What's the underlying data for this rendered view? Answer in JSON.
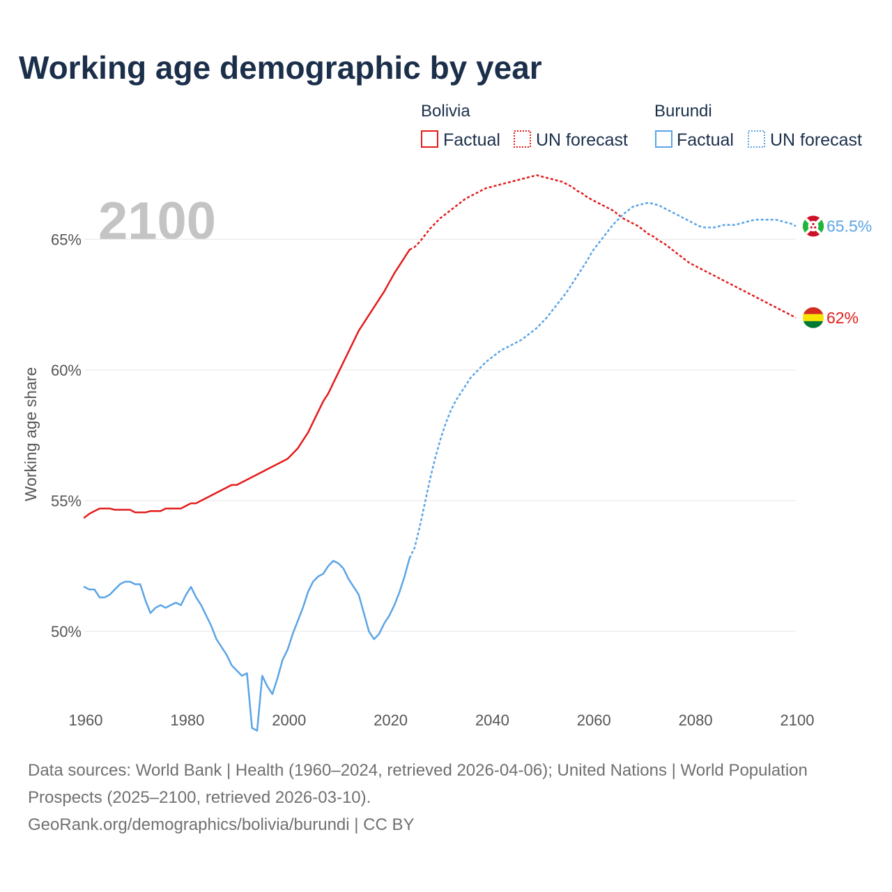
{
  "title": "Working age demographic by year",
  "legend": {
    "groups": [
      {
        "name": "Bolivia",
        "color": "#e31b1b",
        "factual_label": "Factual",
        "forecast_label": "UN forecast"
      },
      {
        "name": "Burundi",
        "color": "#5aa4e6",
        "factual_label": "Factual",
        "forecast_label": "UN forecast"
      }
    ]
  },
  "year_display": "2100",
  "footer": {
    "sources": "Data sources: World Bank | Health (1960–2024, retrieved 2026-04-06); United Nations | World Population Prospects (2025–2100, retrieved 2026-03-10).",
    "credit": "GeoRank.org/demographics/bolivia/burundi | CC BY"
  },
  "chart_data": {
    "type": "line",
    "title": "Working age demographic by year",
    "xlabel": "",
    "ylabel": "Working age share",
    "xlim": [
      1960,
      2100
    ],
    "ylim": [
      46.0,
      68.5
    ],
    "x_ticks": [
      1960,
      1980,
      2000,
      2020,
      2040,
      2060,
      2080,
      2100
    ],
    "x_tick_labels": [
      "1960",
      "1980",
      "2000",
      "2020",
      "2040",
      "2060",
      "2080",
      "2100"
    ],
    "y_ticks": [
      50,
      55,
      60,
      65
    ],
    "y_tick_labels": [
      "50%",
      "55%",
      "60%",
      "65%"
    ],
    "grid": true,
    "series": [
      {
        "name": "Bolivia",
        "color": "#e31b1b",
        "end_label": "62%",
        "flag_icon": "bolivia-flag-icon",
        "flag_colors": [
          "#d52b1e",
          "#f9e300",
          "#007934"
        ],
        "factual": [
          [
            1960,
            54.35
          ],
          [
            1961,
            54.5
          ],
          [
            1962,
            54.6
          ],
          [
            1963,
            54.7
          ],
          [
            1964,
            54.7
          ],
          [
            1965,
            54.7
          ],
          [
            1966,
            54.65
          ],
          [
            1967,
            54.65
          ],
          [
            1968,
            54.65
          ],
          [
            1969,
            54.65
          ],
          [
            1970,
            54.55
          ],
          [
            1971,
            54.55
          ],
          [
            1972,
            54.55
          ],
          [
            1973,
            54.6
          ],
          [
            1974,
            54.6
          ],
          [
            1975,
            54.6
          ],
          [
            1976,
            54.7
          ],
          [
            1977,
            54.7
          ],
          [
            1978,
            54.7
          ],
          [
            1979,
            54.7
          ],
          [
            1980,
            54.8
          ],
          [
            1981,
            54.9
          ],
          [
            1982,
            54.9
          ],
          [
            1983,
            55.0
          ],
          [
            1984,
            55.1
          ],
          [
            1985,
            55.2
          ],
          [
            1986,
            55.3
          ],
          [
            1987,
            55.4
          ],
          [
            1988,
            55.5
          ],
          [
            1989,
            55.6
          ],
          [
            1990,
            55.6
          ],
          [
            1991,
            55.7
          ],
          [
            1992,
            55.8
          ],
          [
            1993,
            55.9
          ],
          [
            1994,
            56.0
          ],
          [
            1995,
            56.1
          ],
          [
            1996,
            56.2
          ],
          [
            1997,
            56.3
          ],
          [
            1998,
            56.4
          ],
          [
            1999,
            56.5
          ],
          [
            2000,
            56.6
          ],
          [
            2001,
            56.8
          ],
          [
            2002,
            57.0
          ],
          [
            2003,
            57.3
          ],
          [
            2004,
            57.6
          ],
          [
            2005,
            58.0
          ],
          [
            2006,
            58.4
          ],
          [
            2007,
            58.8
          ],
          [
            2008,
            59.1
          ],
          [
            2009,
            59.5
          ],
          [
            2010,
            59.9
          ],
          [
            2011,
            60.3
          ],
          [
            2012,
            60.7
          ],
          [
            2013,
            61.1
          ],
          [
            2014,
            61.5
          ],
          [
            2015,
            61.8
          ],
          [
            2016,
            62.1
          ],
          [
            2017,
            62.4
          ],
          [
            2018,
            62.7
          ],
          [
            2019,
            63.0
          ],
          [
            2020,
            63.35
          ],
          [
            2021,
            63.7
          ],
          [
            2022,
            64.0
          ],
          [
            2023,
            64.3
          ],
          [
            2024,
            64.6
          ]
        ],
        "forecast": [
          [
            2024,
            64.6
          ],
          [
            2025,
            64.7
          ],
          [
            2026,
            64.9
          ],
          [
            2027,
            65.15
          ],
          [
            2028,
            65.4
          ],
          [
            2029,
            65.6
          ],
          [
            2030,
            65.8
          ],
          [
            2031,
            65.95
          ],
          [
            2032,
            66.1
          ],
          [
            2033,
            66.25
          ],
          [
            2034,
            66.4
          ],
          [
            2035,
            66.55
          ],
          [
            2036,
            66.65
          ],
          [
            2037,
            66.75
          ],
          [
            2038,
            66.85
          ],
          [
            2039,
            66.95
          ],
          [
            2040,
            67.0
          ],
          [
            2041,
            67.05
          ],
          [
            2042,
            67.1
          ],
          [
            2043,
            67.15
          ],
          [
            2044,
            67.2
          ],
          [
            2045,
            67.25
          ],
          [
            2046,
            67.3
          ],
          [
            2047,
            67.35
          ],
          [
            2048,
            67.4
          ],
          [
            2049,
            67.45
          ],
          [
            2050,
            67.4
          ],
          [
            2051,
            67.35
          ],
          [
            2052,
            67.3
          ],
          [
            2053,
            67.25
          ],
          [
            2054,
            67.2
          ],
          [
            2055,
            67.1
          ],
          [
            2056,
            67.0
          ],
          [
            2057,
            66.85
          ],
          [
            2058,
            66.75
          ],
          [
            2059,
            66.6
          ],
          [
            2060,
            66.5
          ],
          [
            2061,
            66.4
          ],
          [
            2062,
            66.3
          ],
          [
            2063,
            66.2
          ],
          [
            2064,
            66.1
          ],
          [
            2065,
            65.95
          ],
          [
            2066,
            65.8
          ],
          [
            2067,
            65.7
          ],
          [
            2068,
            65.6
          ],
          [
            2069,
            65.5
          ],
          [
            2070,
            65.35
          ],
          [
            2071,
            65.2
          ],
          [
            2072,
            65.1
          ],
          [
            2073,
            64.95
          ],
          [
            2074,
            64.85
          ],
          [
            2075,
            64.7
          ],
          [
            2076,
            64.55
          ],
          [
            2077,
            64.4
          ],
          [
            2078,
            64.25
          ],
          [
            2079,
            64.1
          ],
          [
            2080,
            64.0
          ],
          [
            2081,
            63.9
          ],
          [
            2082,
            63.8
          ],
          [
            2083,
            63.7
          ],
          [
            2084,
            63.6
          ],
          [
            2085,
            63.5
          ],
          [
            2086,
            63.4
          ],
          [
            2087,
            63.3
          ],
          [
            2088,
            63.2
          ],
          [
            2089,
            63.1
          ],
          [
            2090,
            63.0
          ],
          [
            2091,
            62.9
          ],
          [
            2092,
            62.8
          ],
          [
            2093,
            62.7
          ],
          [
            2094,
            62.6
          ],
          [
            2095,
            62.5
          ],
          [
            2096,
            62.4
          ],
          [
            2097,
            62.3
          ],
          [
            2098,
            62.2
          ],
          [
            2099,
            62.1
          ],
          [
            2100,
            62.0
          ]
        ]
      },
      {
        "name": "Burundi",
        "color": "#5aa4e6",
        "end_label": "65.5%",
        "flag_icon": "burundi-flag-icon",
        "flag_colors": [
          "#ce1126",
          "#1eb53a",
          "#ffffff"
        ],
        "factual": [
          [
            1960,
            51.7
          ],
          [
            1961,
            51.6
          ],
          [
            1962,
            51.6
          ],
          [
            1963,
            51.3
          ],
          [
            1964,
            51.3
          ],
          [
            1965,
            51.4
          ],
          [
            1966,
            51.6
          ],
          [
            1967,
            51.8
          ],
          [
            1968,
            51.9
          ],
          [
            1969,
            51.9
          ],
          [
            1970,
            51.8
          ],
          [
            1971,
            51.8
          ],
          [
            1972,
            51.2
          ],
          [
            1973,
            50.7
          ],
          [
            1974,
            50.9
          ],
          [
            1975,
            51.0
          ],
          [
            1976,
            50.9
          ],
          [
            1977,
            51.0
          ],
          [
            1978,
            51.1
          ],
          [
            1979,
            51.0
          ],
          [
            1980,
            51.4
          ],
          [
            1981,
            51.7
          ],
          [
            1982,
            51.3
          ],
          [
            1983,
            51.0
          ],
          [
            1984,
            50.6
          ],
          [
            1985,
            50.2
          ],
          [
            1986,
            49.7
          ],
          [
            1987,
            49.4
          ],
          [
            1988,
            49.1
          ],
          [
            1989,
            48.7
          ],
          [
            1990,
            48.5
          ],
          [
            1991,
            48.3
          ],
          [
            1992,
            48.4
          ],
          [
            1993,
            46.3
          ],
          [
            1994,
            46.2
          ],
          [
            1995,
            48.3
          ],
          [
            1996,
            47.9
          ],
          [
            1997,
            47.6
          ],
          [
            1998,
            48.2
          ],
          [
            1999,
            48.9
          ],
          [
            2000,
            49.3
          ],
          [
            2001,
            49.9
          ],
          [
            2002,
            50.4
          ],
          [
            2003,
            50.9
          ],
          [
            2004,
            51.5
          ],
          [
            2005,
            51.9
          ],
          [
            2006,
            52.1
          ],
          [
            2007,
            52.2
          ],
          [
            2008,
            52.5
          ],
          [
            2009,
            52.7
          ],
          [
            2010,
            52.6
          ],
          [
            2011,
            52.4
          ],
          [
            2012,
            52.0
          ],
          [
            2013,
            51.7
          ],
          [
            2014,
            51.4
          ],
          [
            2015,
            50.7
          ],
          [
            2016,
            50.0
          ],
          [
            2017,
            49.7
          ],
          [
            2018,
            49.9
          ],
          [
            2019,
            50.3
          ],
          [
            2020,
            50.6
          ],
          [
            2021,
            51.0
          ],
          [
            2022,
            51.5
          ],
          [
            2023,
            52.1
          ],
          [
            2024,
            52.8
          ]
        ],
        "forecast": [
          [
            2024,
            52.8
          ],
          [
            2025,
            53.2
          ],
          [
            2026,
            54.0
          ],
          [
            2027,
            54.9
          ],
          [
            2028,
            55.8
          ],
          [
            2029,
            56.6
          ],
          [
            2030,
            57.3
          ],
          [
            2031,
            57.9
          ],
          [
            2032,
            58.4
          ],
          [
            2033,
            58.8
          ],
          [
            2034,
            59.1
          ],
          [
            2035,
            59.4
          ],
          [
            2036,
            59.7
          ],
          [
            2037,
            59.9
          ],
          [
            2038,
            60.1
          ],
          [
            2039,
            60.3
          ],
          [
            2040,
            60.45
          ],
          [
            2041,
            60.6
          ],
          [
            2042,
            60.75
          ],
          [
            2043,
            60.85
          ],
          [
            2044,
            60.95
          ],
          [
            2045,
            61.05
          ],
          [
            2046,
            61.15
          ],
          [
            2047,
            61.3
          ],
          [
            2048,
            61.45
          ],
          [
            2049,
            61.6
          ],
          [
            2050,
            61.8
          ],
          [
            2051,
            62.0
          ],
          [
            2052,
            62.25
          ],
          [
            2053,
            62.5
          ],
          [
            2054,
            62.75
          ],
          [
            2055,
            63.0
          ],
          [
            2056,
            63.3
          ],
          [
            2057,
            63.6
          ],
          [
            2058,
            63.9
          ],
          [
            2059,
            64.2
          ],
          [
            2060,
            64.55
          ],
          [
            2061,
            64.8
          ],
          [
            2062,
            65.05
          ],
          [
            2063,
            65.3
          ],
          [
            2064,
            65.55
          ],
          [
            2065,
            65.75
          ],
          [
            2066,
            65.95
          ],
          [
            2067,
            66.1
          ],
          [
            2068,
            66.25
          ],
          [
            2069,
            66.3
          ],
          [
            2070,
            66.35
          ],
          [
            2071,
            66.4
          ],
          [
            2072,
            66.35
          ],
          [
            2073,
            66.3
          ],
          [
            2074,
            66.2
          ],
          [
            2075,
            66.1
          ],
          [
            2076,
            66.0
          ],
          [
            2077,
            65.9
          ],
          [
            2078,
            65.8
          ],
          [
            2079,
            65.7
          ],
          [
            2080,
            65.6
          ],
          [
            2081,
            65.5
          ],
          [
            2082,
            65.45
          ],
          [
            2083,
            65.45
          ],
          [
            2084,
            65.45
          ],
          [
            2085,
            65.5
          ],
          [
            2086,
            65.55
          ],
          [
            2087,
            65.55
          ],
          [
            2088,
            65.55
          ],
          [
            2089,
            65.6
          ],
          [
            2090,
            65.65
          ],
          [
            2091,
            65.7
          ],
          [
            2092,
            65.75
          ],
          [
            2093,
            65.75
          ],
          [
            2094,
            65.75
          ],
          [
            2095,
            65.75
          ],
          [
            2096,
            65.75
          ],
          [
            2097,
            65.7
          ],
          [
            2098,
            65.65
          ],
          [
            2099,
            65.6
          ],
          [
            2100,
            65.5
          ]
        ]
      }
    ]
  }
}
